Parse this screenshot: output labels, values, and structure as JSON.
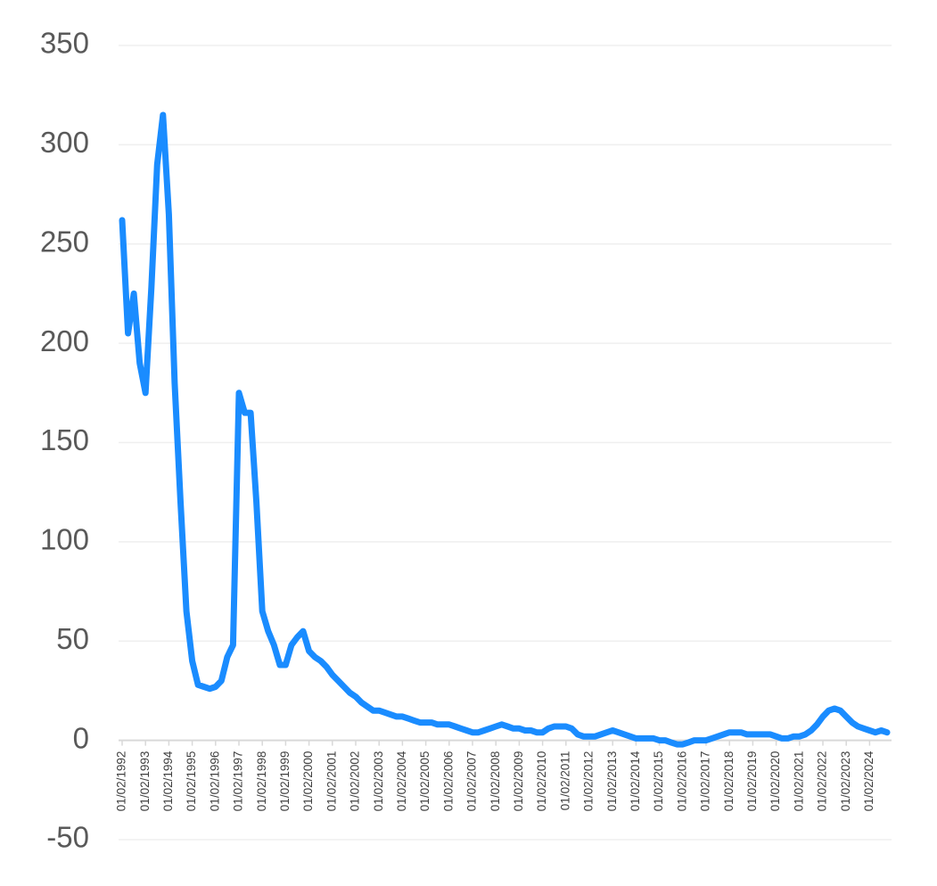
{
  "chart_data": {
    "type": "line",
    "categories": [
      "01/02/1992",
      null,
      null,
      null,
      "01/02/1993",
      null,
      null,
      null,
      "01/02/1994",
      null,
      null,
      null,
      "01/02/1995",
      null,
      null,
      null,
      "01/02/1996",
      null,
      null,
      null,
      "01/02/1997",
      null,
      null,
      null,
      "01/02/1998",
      null,
      null,
      null,
      "01/02/1999",
      null,
      null,
      null,
      "01/02/2000",
      null,
      null,
      null,
      "01/02/2001",
      null,
      null,
      null,
      "01/02/2002",
      null,
      null,
      null,
      "01/02/2003",
      null,
      null,
      null,
      "01/02/2004",
      null,
      null,
      null,
      "01/02/2005",
      null,
      null,
      null,
      "01/02/2006",
      null,
      null,
      null,
      "01/02/2007",
      null,
      null,
      null,
      "01/02/2008",
      null,
      null,
      null,
      "01/02/2009",
      null,
      null,
      null,
      "01/02/2010",
      null,
      null,
      null,
      "01/02/2011",
      null,
      null,
      null,
      "01/02/2012",
      null,
      null,
      null,
      "01/02/2013",
      null,
      null,
      null,
      "01/02/2014",
      null,
      null,
      null,
      "01/02/2015",
      null,
      null,
      null,
      "01/02/2016",
      null,
      null,
      null,
      "01/02/2017",
      null,
      null,
      null,
      "01/02/2018",
      null,
      null,
      null,
      "01/02/2019",
      null,
      null,
      null,
      "01/02/2020",
      null,
      null,
      null,
      "01/02/2021",
      null,
      null,
      null,
      "01/02/2022",
      null,
      null,
      null,
      "01/02/2023",
      null,
      null,
      null,
      "01/02/2024",
      null,
      null,
      null
    ],
    "series": [
      {
        "color": "#1a8cff",
        "values": [
          262,
          205,
          225,
          190,
          175,
          228,
          290,
          315,
          265,
          180,
          120,
          65,
          40,
          28,
          27,
          26,
          27,
          30,
          42,
          48,
          175,
          165,
          165,
          120,
          65,
          55,
          48,
          38,
          38,
          48,
          52,
          55,
          45,
          42,
          40,
          37,
          33,
          30,
          27,
          24,
          22,
          19,
          17,
          15,
          15,
          14,
          13,
          12,
          12,
          11,
          10,
          9,
          9,
          9,
          8,
          8,
          8,
          7,
          6,
          5,
          4,
          4,
          5,
          6,
          7,
          8,
          7,
          6,
          6,
          5,
          5,
          4,
          4,
          6,
          7,
          7,
          7,
          6,
          3,
          2,
          2,
          2,
          3,
          4,
          5,
          4,
          3,
          2,
          1,
          1,
          1,
          1,
          0,
          0,
          -1,
          -2,
          -2,
          -1,
          0,
          0,
          0,
          1,
          2,
          3,
          4,
          4,
          4,
          3,
          3,
          3,
          3,
          3,
          2,
          1,
          1,
          2,
          2,
          3,
          5,
          8,
          12,
          15,
          16,
          15,
          12,
          9,
          7,
          6,
          5,
          4,
          5,
          4
        ]
      }
    ],
    "ylim": [
      -50,
      350
    ],
    "yticks": [
      -50,
      0,
      50,
      100,
      150,
      200,
      250,
      300,
      350
    ],
    "grid": true
  }
}
